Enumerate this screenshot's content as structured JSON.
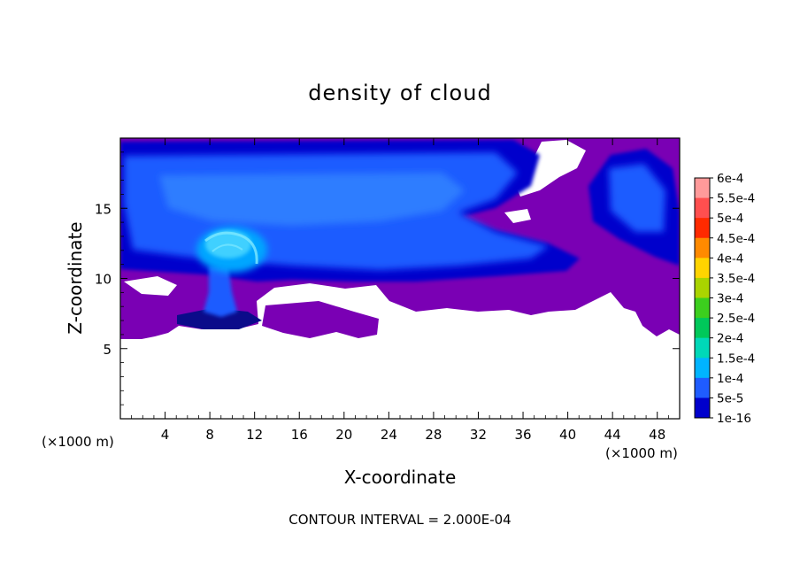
{
  "chart_data": {
    "type": "heatmap",
    "title": "density of cloud",
    "xlabel": "X-coordinate",
    "ylabel": "Z-coordinate",
    "x_unit_left": "(×1000 m)",
    "x_unit_right": "(×1000 m)",
    "xlim": [
      0,
      50
    ],
    "ylim": [
      0,
      20
    ],
    "xticks": [
      4,
      8,
      12,
      16,
      20,
      24,
      28,
      32,
      36,
      40,
      44,
      48
    ],
    "xtick_labels": [
      "4",
      "8",
      "12",
      "16",
      "20",
      "24",
      "28",
      "32",
      "36",
      "40",
      "44",
      "48"
    ],
    "yticks": [
      5,
      10,
      15
    ],
    "ytick_labels": [
      "5",
      "10",
      "15"
    ],
    "footer": "CONTOUR INTERVAL = 2.000E-04",
    "colorbar": {
      "labels": [
        "6e-4",
        "5.5e-4",
        "5e-4",
        "4.5e-4",
        "4e-4",
        "3.5e-4",
        "3e-4",
        "2.5e-4",
        "2e-4",
        "1.5e-4",
        "1e-4",
        "5e-5",
        "1e-16"
      ],
      "colors": [
        "#ff9a9a",
        "#ff4f4f",
        "#ff2a00",
        "#ff8a00",
        "#ffd400",
        "#aad400",
        "#3ccf1e",
        "#00c85a",
        "#00d8b8",
        "#00b4ff",
        "#1f5cff",
        "#0000cc",
        "#7a00b4"
      ]
    }
  }
}
